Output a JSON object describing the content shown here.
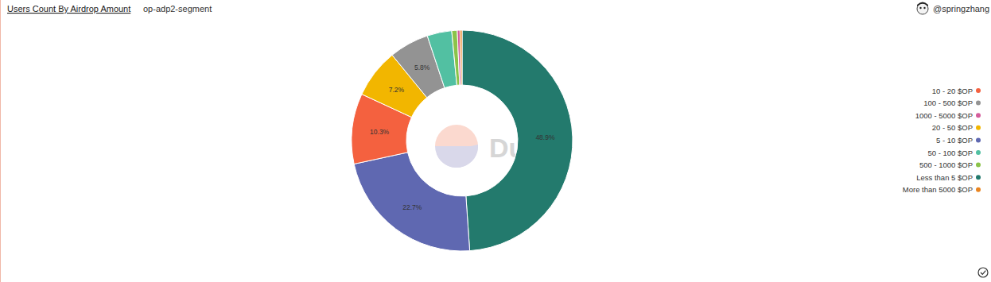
{
  "chart_data": {
    "type": "pie",
    "title": "Users Count By Airdrop Amount",
    "subtitle": "op-adp2-segment",
    "annotations": [
      "@springzhang",
      "Dune"
    ],
    "categories": [
      "Less than 5 $OP",
      "5 - 10 $OP",
      "10 - 20 $OP",
      "20 - 50 $OP",
      "100 - 500 $OP",
      "50 - 100 $OP",
      "500 - 1000 $OP",
      "1000 - 5000 $OP",
      "More than 5000 $OP"
    ],
    "values": [
      48.9,
      22.7,
      10.3,
      7.2,
      5.8,
      3.6,
      0.8,
      0.4,
      0.3
    ],
    "value_labels": [
      "48.9%",
      "22.7%",
      "10.3%",
      "7.2%",
      "5.8%",
      null,
      null,
      null,
      null
    ],
    "colors": [
      "#237a6d",
      "#5f68b1",
      "#f4613f",
      "#f2b600",
      "#939393",
      "#52c0a2",
      "#8bc34a",
      "#d45d9c",
      "#e98420"
    ],
    "data_labels": true,
    "legend": "right"
  }
}
